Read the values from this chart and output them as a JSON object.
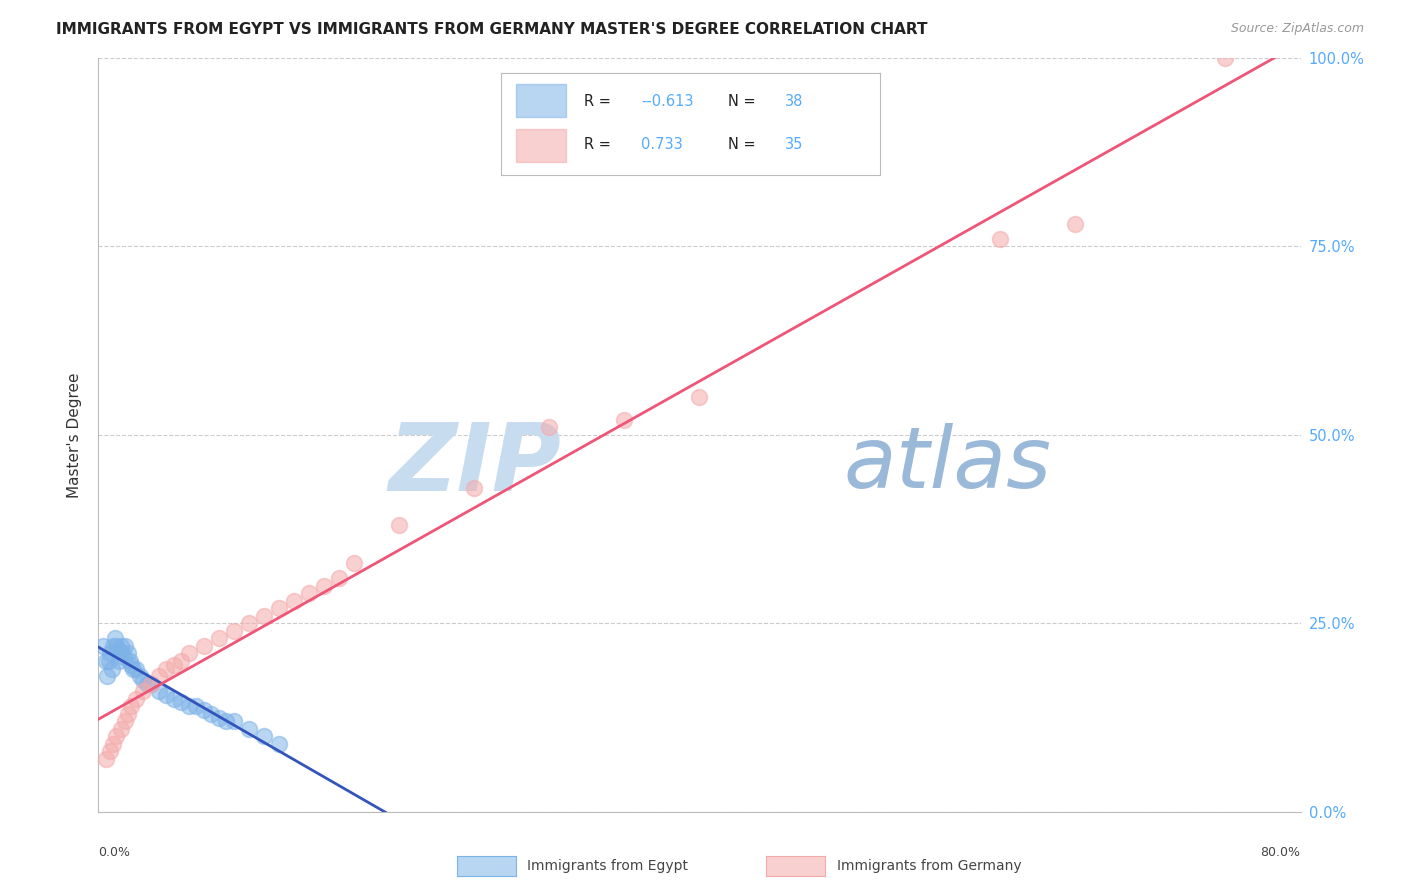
{
  "title": "IMMIGRANTS FROM EGYPT VS IMMIGRANTS FROM GERMANY MASTER'S DEGREE CORRELATION CHART",
  "source": "Source: ZipAtlas.com",
  "ylabel": "Master's Degree",
  "xlabel_bottom_left": "0.0%",
  "xlabel_bottom_right": "80.0%",
  "xmin": 0.0,
  "xmax": 80.0,
  "ymin": 0.0,
  "ymax": 100.0,
  "yticks": [
    0,
    25,
    50,
    75,
    100
  ],
  "ytick_labels": [
    "0.0%",
    "25.0%",
    "50.0%",
    "75.0%",
    "100.0%"
  ],
  "legend_r1": "-0.613",
  "legend_n1": "38",
  "legend_r2": "0.733",
  "legend_n2": "35",
  "color_egypt": "#7EB3E8",
  "color_germany": "#F4AAAA",
  "color_egypt_line": "#3355BB",
  "color_germany_line": "#EE5577",
  "watermark_zip": "ZIP",
  "watermark_atlas": "atlas",
  "watermark_color_zip": "#C8DCF0",
  "watermark_color_atlas": "#9AB8D8",
  "background_color": "#FFFFFF",
  "grid_color": "#CCCCCC",
  "egypt_x": [
    0.3,
    0.5,
    0.6,
    0.7,
    0.8,
    0.9,
    1.0,
    1.1,
    1.2,
    1.3,
    1.4,
    1.5,
    1.6,
    1.7,
    1.8,
    2.0,
    2.1,
    2.2,
    2.3,
    2.5,
    2.8,
    3.0,
    3.2,
    3.5,
    4.0,
    4.5,
    5.0,
    5.5,
    6.0,
    6.5,
    7.0,
    7.5,
    8.0,
    8.5,
    9.0,
    10.0,
    11.0,
    12.0
  ],
  "egypt_y": [
    22.0,
    20.0,
    18.0,
    20.0,
    21.0,
    19.0,
    22.0,
    23.0,
    22.0,
    21.5,
    20.0,
    22.0,
    21.0,
    20.5,
    22.0,
    21.0,
    20.0,
    19.5,
    19.0,
    19.0,
    18.0,
    17.5,
    17.0,
    17.0,
    16.0,
    15.5,
    15.0,
    14.5,
    14.0,
    14.0,
    13.5,
    13.0,
    12.5,
    12.0,
    12.0,
    11.0,
    10.0,
    9.0
  ],
  "germany_x": [
    0.5,
    0.8,
    1.0,
    1.2,
    1.5,
    1.8,
    2.0,
    2.2,
    2.5,
    3.0,
    3.5,
    4.0,
    4.5,
    5.0,
    5.5,
    6.0,
    7.0,
    8.0,
    9.0,
    10.0,
    11.0,
    12.0,
    13.0,
    14.0,
    15.0,
    16.0,
    17.0,
    20.0,
    25.0,
    30.0,
    35.0,
    40.0,
    60.0,
    65.0,
    75.0
  ],
  "germany_y": [
    7.0,
    8.0,
    9.0,
    10.0,
    11.0,
    12.0,
    13.0,
    14.0,
    15.0,
    16.0,
    17.0,
    18.0,
    19.0,
    19.5,
    20.0,
    21.0,
    22.0,
    23.0,
    24.0,
    25.0,
    26.0,
    27.0,
    28.0,
    29.0,
    30.0,
    31.0,
    33.0,
    38.0,
    43.0,
    51.0,
    52.0,
    55.0,
    76.0,
    78.0,
    100.0
  ],
  "germany_outlier_x": [
    60.0
  ],
  "germany_outlier_y": [
    76.0
  ]
}
